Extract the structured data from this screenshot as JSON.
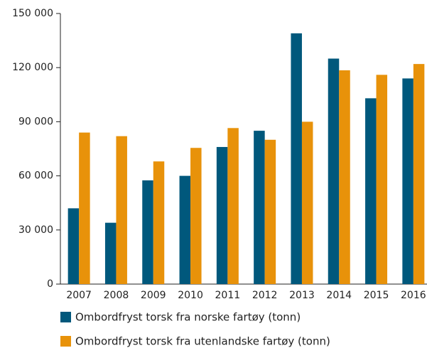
{
  "chart_data": {
    "type": "bar",
    "categories": [
      "2007",
      "2008",
      "2009",
      "2010",
      "2011",
      "2012",
      "2013",
      "2014",
      "2015",
      "2016"
    ],
    "series": [
      {
        "name": "Ombordfryst torsk fra norske fartøy (tonn)",
        "color": "#00587c",
        "values": [
          42000,
          34000,
          57500,
          60000,
          76000,
          85000,
          139000,
          125000,
          103000,
          114000
        ]
      },
      {
        "name": "Ombordfryst torsk fra utenlandske fartøy (tonn)",
        "color": "#e8920a",
        "values": [
          84000,
          82000,
          68000,
          75500,
          86500,
          80000,
          90000,
          118500,
          116000,
          122000
        ]
      }
    ],
    "ylim": [
      0,
      150000
    ],
    "yticks": [
      0,
      {
        "value": 30000,
        "label": "30 000"
      },
      {
        "value": 60000,
        "label": "60 000"
      },
      {
        "value": 90000,
        "label": "90 000"
      },
      {
        "value": 120000,
        "label": "120 000"
      },
      {
        "value": 150000,
        "label": "150 000"
      }
    ],
    "legend": "bottom"
  }
}
